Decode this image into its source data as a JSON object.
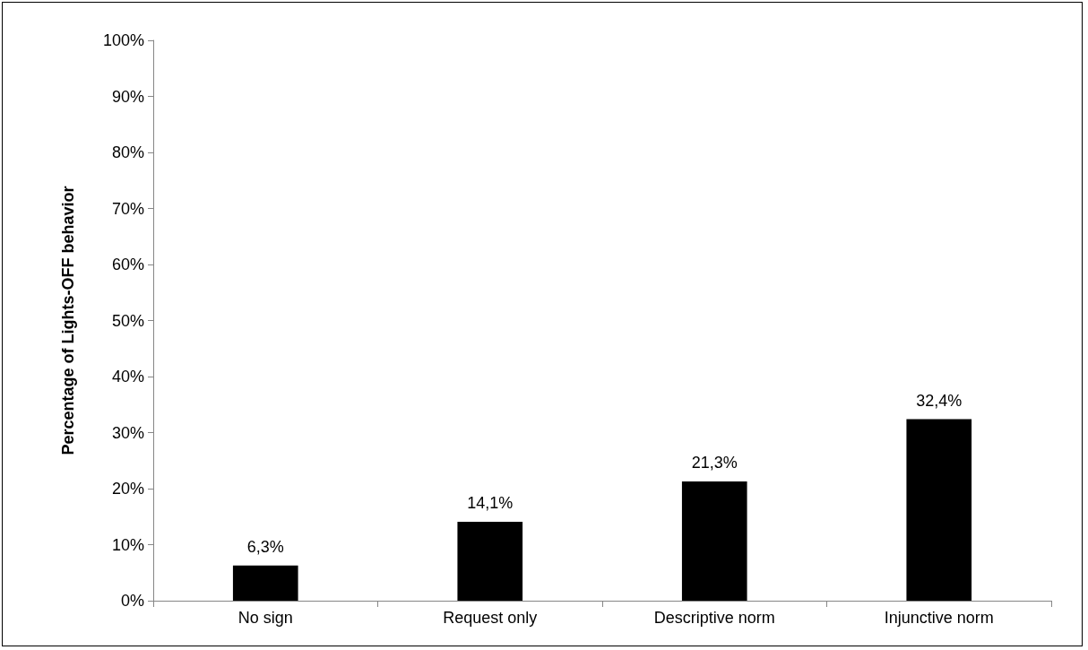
{
  "chart_data": {
    "type": "bar",
    "ylabel": "Percentage of Lights-OFF behavior",
    "categories": [
      "No sign",
      "Request only",
      "Descriptive norm",
      "Injunctive norm"
    ],
    "values": [
      6.3,
      14.1,
      21.3,
      32.4
    ],
    "color": "#000000",
    "value_labels": [
      "6,3%",
      "14,1%",
      "21,3%",
      "32,4%"
    ],
    "ylim": [
      0,
      100
    ],
    "yticks": [
      {
        "value": 0,
        "label": "0%"
      },
      {
        "value": 10,
        "label": "10%"
      },
      {
        "value": 20,
        "label": "20%"
      },
      {
        "value": 30,
        "label": "30%"
      },
      {
        "value": 40,
        "label": "40%"
      },
      {
        "value": 50,
        "label": "50%"
      },
      {
        "value": 60,
        "label": "60%"
      },
      {
        "value": 70,
        "label": "70%"
      },
      {
        "value": 80,
        "label": "80%"
      },
      {
        "value": 90,
        "label": "90%"
      },
      {
        "value": 100,
        "label": "100%"
      }
    ],
    "grid": false
  }
}
